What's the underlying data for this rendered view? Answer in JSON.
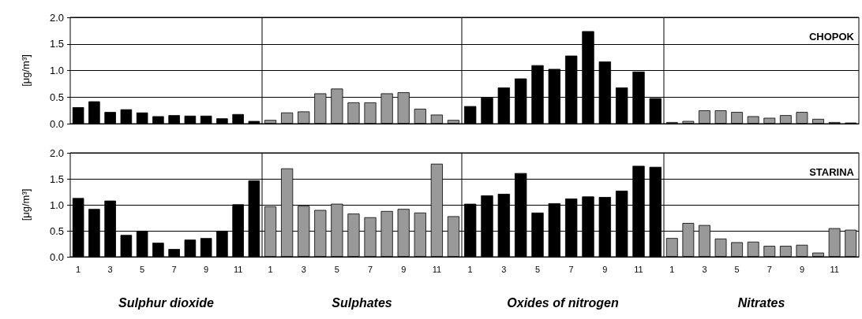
{
  "chart_data": [
    {
      "type": "bar",
      "ylabel": "[μg/m³]",
      "categories": [
        "1",
        null,
        "3",
        null,
        "5",
        null,
        "7",
        null,
        "9",
        null,
        "11",
        null
      ],
      "values": [
        0.31,
        0.42,
        0.22,
        0.27,
        0.21,
        0.14,
        0.16,
        0.15,
        0.15,
        0.1,
        0.18,
        0.05
      ],
      "color": "#000000",
      "ylim": [
        0,
        2
      ],
      "yticks": [
        {
          "value": 0,
          "label": "0.0"
        },
        {
          "value": 0.5,
          "label": "0.5"
        },
        {
          "value": 1,
          "label": "1.0"
        },
        {
          "value": 1.5,
          "label": "1.5"
        },
        {
          "value": 2,
          "label": "2.0"
        }
      ],
      "grid": "y",
      "tick_labels": "y"
    },
    {
      "type": "bar",
      "categories": [
        "1",
        null,
        "3",
        null,
        "5",
        null,
        "7",
        null,
        "9",
        null,
        "11",
        null
      ],
      "values": [
        0.07,
        0.21,
        0.23,
        0.57,
        0.66,
        0.4,
        0.4,
        0.57,
        0.59,
        0.28,
        0.17,
        0.07
      ],
      "color": "#999999",
      "ylim": [
        0,
        2
      ],
      "yticks": [
        {
          "value": 0,
          "label": null
        },
        {
          "value": 0.5,
          "label": null
        },
        {
          "value": 1,
          "label": null
        },
        {
          "value": 1.5,
          "label": null
        },
        {
          "value": 2,
          "label": null
        }
      ],
      "grid": "y",
      "tick_labels": false
    },
    {
      "type": "bar",
      "categories": [
        "1",
        null,
        "3",
        null,
        "5",
        null,
        "7",
        null,
        "9",
        null,
        "11",
        null
      ],
      "values": [
        0.33,
        0.49,
        0.68,
        0.85,
        1.1,
        1.03,
        1.28,
        1.74,
        1.17,
        0.68,
        0.98,
        0.48
      ],
      "color": "#000000",
      "ylim": [
        0,
        2
      ],
      "yticks": [
        {
          "value": 0,
          "label": null
        },
        {
          "value": 0.5,
          "label": null
        },
        {
          "value": 1,
          "label": null
        },
        {
          "value": 1.5,
          "label": null
        },
        {
          "value": 2,
          "label": null
        }
      ],
      "grid": "y",
      "tick_labels": false
    },
    {
      "type": "bar",
      "categories": [
        "1",
        null,
        "3",
        null,
        "5",
        null,
        "7",
        null,
        "9",
        null,
        "11",
        null
      ],
      "values": [
        0.03,
        0.05,
        0.25,
        0.25,
        0.22,
        0.14,
        0.11,
        0.16,
        0.22,
        0.09,
        0.03,
        0.02
      ],
      "color": "#999999",
      "ylim": [
        0,
        2
      ],
      "yticks": [
        {
          "value": 0,
          "label": null
        },
        {
          "value": 0.5,
          "label": null
        },
        {
          "value": 1,
          "label": null
        },
        {
          "value": 1.5,
          "label": null
        },
        {
          "value": 2,
          "label": null
        }
      ],
      "grid": "y",
      "tick_labels": false,
      "annotations": [
        "CHOPOK"
      ]
    },
    {
      "type": "bar",
      "ylabel": "[μg/m³]",
      "xlabel": "Sulphur dioxide",
      "categories": [
        "1",
        null,
        "3",
        null,
        "5",
        null,
        "7",
        null,
        "9",
        null,
        "11",
        null
      ],
      "values": [
        1.13,
        0.92,
        1.08,
        0.42,
        0.5,
        0.27,
        0.15,
        0.33,
        0.36,
        0.5,
        1.01,
        1.47
      ],
      "color": "#000000",
      "ylim": [
        0,
        2
      ],
      "yticks": [
        {
          "value": 0,
          "label": "0.0"
        },
        {
          "value": 0.5,
          "label": "0.5"
        },
        {
          "value": 1,
          "label": "1.0"
        },
        {
          "value": 1.5,
          "label": "1.5"
        },
        {
          "value": 2,
          "label": "2.0"
        }
      ],
      "grid": "y"
    },
    {
      "type": "bar",
      "xlabel": "Sulphates",
      "categories": [
        "1",
        null,
        "3",
        null,
        "5",
        null,
        "7",
        null,
        "9",
        null,
        "11",
        null
      ],
      "values": [
        0.97,
        1.7,
        0.98,
        0.9,
        1.02,
        0.83,
        0.76,
        0.88,
        0.92,
        0.85,
        1.79,
        0.78
      ],
      "color": "#999999",
      "ylim": [
        0,
        2
      ],
      "yticks": [
        {
          "value": 0,
          "label": null
        },
        {
          "value": 0.5,
          "label": null
        },
        {
          "value": 1,
          "label": null
        },
        {
          "value": 1.5,
          "label": null
        },
        {
          "value": 2,
          "label": null
        }
      ],
      "grid": "y",
      "tick_labels": "x"
    },
    {
      "type": "bar",
      "xlabel": "Oxides of nitrogen",
      "categories": [
        "1",
        null,
        "3",
        null,
        "5",
        null,
        "7",
        null,
        "9",
        null,
        "11",
        null
      ],
      "values": [
        1.02,
        1.18,
        1.21,
        1.61,
        0.85,
        1.03,
        1.12,
        1.16,
        1.15,
        1.27,
        1.75,
        1.73
      ],
      "color": "#000000",
      "ylim": [
        0,
        2
      ],
      "yticks": [
        {
          "value": 0,
          "label": null
        },
        {
          "value": 0.5,
          "label": null
        },
        {
          "value": 1,
          "label": null
        },
        {
          "value": 1.5,
          "label": null
        },
        {
          "value": 2,
          "label": null
        }
      ],
      "grid": "y",
      "tick_labels": "x"
    },
    {
      "type": "bar",
      "xlabel": "Nitrates",
      "categories": [
        "1",
        null,
        "3",
        null,
        "5",
        null,
        "7",
        null,
        "9",
        null,
        "11",
        null
      ],
      "values": [
        0.36,
        0.65,
        0.61,
        0.35,
        0.28,
        0.29,
        0.21,
        0.21,
        0.23,
        0.08,
        0.55,
        0.52
      ],
      "color": "#999999",
      "ylim": [
        0,
        2
      ],
      "yticks": [
        {
          "value": 0,
          "label": null
        },
        {
          "value": 0.5,
          "label": null
        },
        {
          "value": 1,
          "label": null
        },
        {
          "value": 1.5,
          "label": null
        },
        {
          "value": 2,
          "label": null
        }
      ],
      "grid": "y",
      "tick_labels": "x",
      "annotations": [
        "STARINA"
      ]
    }
  ]
}
